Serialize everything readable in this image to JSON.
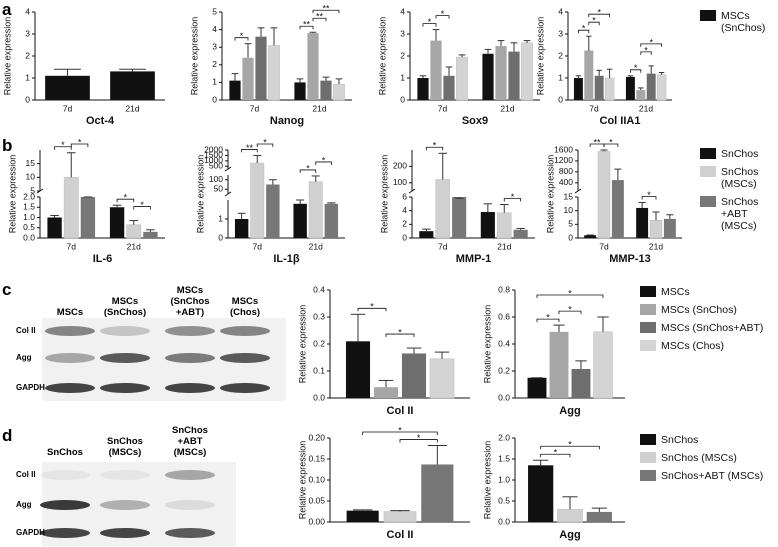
{
  "panels": [
    {
      "label": "a"
    },
    {
      "label": "b"
    },
    {
      "label": "c"
    },
    {
      "label": "d"
    }
  ],
  "blots": [
    {
      "columns": [
        "MSCs",
        "MSCs (SnChos)",
        "MSCs (SnChos +ABT)",
        "MSCs (Chos)"
      ],
      "rows": [
        "Col II",
        "Agg",
        "GAPDH"
      ]
    },
    {
      "columns": [
        "SnChos",
        "SnChos (MSCs)",
        "SnChos +ABT (MSCs)"
      ],
      "rows": [
        "Col II",
        "Agg",
        "GAPDH"
      ]
    }
  ],
  "chart_data": [
    {
      "type": "bar",
      "ylabel": "Relative expression",
      "xlabel": "Oct-4",
      "categories": [
        "7d",
        "21d"
      ],
      "ylim": [
        0,
        4
      ],
      "yticks": [
        0,
        1,
        2,
        3,
        4
      ],
      "series": [
        {
          "name": "MSCs (SnChos)",
          "color": "#111111",
          "values": [
            1.1,
            1.3
          ],
          "errors": [
            0.3,
            0.1
          ]
        }
      ],
      "significance": []
    },
    {
      "type": "bar",
      "ylabel": "Relative expression",
      "xlabel": "Nanog",
      "categories": [
        "7d",
        "21d"
      ],
      "ylim": [
        0,
        5
      ],
      "yticks": [
        0,
        1,
        2,
        3,
        4,
        5
      ],
      "series": [
        {
          "color": "#111111",
          "values": [
            1.1,
            1.0
          ],
          "errors": [
            0.4,
            0.2
          ]
        },
        {
          "color": "#a6a6a6",
          "values": [
            2.4,
            3.8
          ],
          "errors": [
            0.8,
            0.05
          ]
        },
        {
          "color": "#6e6e6e",
          "values": [
            3.6,
            1.1
          ],
          "errors": [
            0.5,
            0.2
          ]
        },
        {
          "color": "#d4d4d4",
          "values": [
            3.1,
            0.9
          ],
          "errors": [
            1.0,
            0.3
          ]
        }
      ],
      "significance": [
        {
          "text": "*",
          "category": 0,
          "bars": [
            0,
            1
          ]
        },
        {
          "text": "**",
          "category": 1,
          "bars": [
            0,
            1
          ]
        },
        {
          "text": "**",
          "category": 1,
          "bars": [
            1,
            2
          ]
        },
        {
          "text": "**",
          "category": 1,
          "bars": [
            1,
            3
          ]
        }
      ]
    },
    {
      "type": "bar",
      "ylabel": "Relative expression",
      "xlabel": "Sox9",
      "categories": [
        "7d",
        "21d"
      ],
      "ylim": [
        0,
        4
      ],
      "yticks": [
        0,
        1,
        2,
        3,
        4
      ],
      "series": [
        {
          "color": "#111111",
          "values": [
            1.0,
            2.1
          ],
          "errors": [
            0.1,
            0.2
          ]
        },
        {
          "color": "#a6a6a6",
          "values": [
            2.7,
            2.45
          ],
          "errors": [
            0.5,
            0.25
          ]
        },
        {
          "color": "#6e6e6e",
          "values": [
            1.1,
            2.2
          ],
          "errors": [
            0.4,
            0.4
          ]
        },
        {
          "color": "#d4d4d4",
          "values": [
            1.95,
            2.6
          ],
          "errors": [
            0.1,
            0.1
          ]
        }
      ],
      "significance": [
        {
          "text": "*",
          "category": 0,
          "bars": [
            0,
            1
          ]
        },
        {
          "text": "*",
          "category": 0,
          "bars": [
            1,
            2
          ]
        }
      ]
    },
    {
      "type": "bar",
      "ylabel": "Relative expression",
      "xlabel": "Col IIA1",
      "categories": [
        "7d",
        "21d"
      ],
      "ylim": [
        0,
        4
      ],
      "yticks": [
        0,
        1,
        2,
        3,
        4
      ],
      "series": [
        {
          "color": "#111111",
          "values": [
            1.0,
            1.05
          ],
          "errors": [
            0.1,
            0.05
          ]
        },
        {
          "color": "#a6a6a6",
          "values": [
            2.25,
            0.45
          ],
          "errors": [
            0.65,
            0.1
          ]
        },
        {
          "color": "#6e6e6e",
          "values": [
            1.1,
            1.2
          ],
          "errors": [
            0.25,
            0.35
          ]
        },
        {
          "color": "#d4d4d4",
          "values": [
            1.0,
            1.15
          ],
          "errors": [
            0.4,
            0.1
          ]
        }
      ],
      "significance": [
        {
          "text": "*",
          "category": 0,
          "bars": [
            0,
            1
          ]
        },
        {
          "text": "*",
          "category": 0,
          "bars": [
            1,
            2
          ]
        },
        {
          "text": "*",
          "category": 0,
          "bars": [
            1,
            3
          ]
        },
        {
          "text": "*",
          "category": 1,
          "bars": [
            0,
            1
          ]
        },
        {
          "text": "*",
          "category": 1,
          "bars": [
            1,
            2
          ]
        },
        {
          "text": "*",
          "category": 1,
          "bars": [
            1,
            3
          ]
        }
      ]
    },
    {
      "type": "bar",
      "ylabel": "Relative expression",
      "xlabel": "IL-6",
      "categories": [
        "7d",
        "21d"
      ],
      "segments": [
        {
          "ylim": [
            0,
            2
          ],
          "yticks": [
            {
              "value": 0,
              "label": "0.0"
            },
            0.5,
            {
              "value": 1,
              "label": "1.0"
            },
            1.5,
            {
              "value": 2,
              "label": "2.0"
            }
          ]
        },
        {
          "ylim": [
            5,
            20
          ],
          "yticks": [
            5,
            10,
            15
          ]
        }
      ],
      "series": [
        {
          "name": "SnChos",
          "color": "#111111",
          "values": [
            1.0,
            1.5
          ],
          "errors": [
            0.1,
            0.1
          ]
        },
        {
          "name": "SnChos (MSCs)",
          "color": "#d0d0d0",
          "values": [
            10,
            0.65
          ],
          "errors": [
            9,
            0.2
          ]
        },
        {
          "name": "SnChos +ABT (MSCs)",
          "color": "#777777",
          "values": [
            2.0,
            0.3
          ],
          "errors": [
            0,
            0.1
          ]
        }
      ],
      "significance": [
        {
          "text": "*",
          "category": 0,
          "bars": [
            0,
            1
          ]
        },
        {
          "text": "*",
          "category": 0,
          "bars": [
            1,
            2
          ]
        },
        {
          "text": "*",
          "category": 1,
          "bars": [
            0,
            1
          ]
        },
        {
          "text": "*",
          "category": 1,
          "bars": [
            1,
            2
          ]
        }
      ]
    },
    {
      "type": "bar",
      "ylabel": "Relative expression",
      "xlabel": "IL-1β",
      "categories": [
        "7d",
        "21d"
      ],
      "segments": [
        {
          "ylim": [
            0,
            2
          ],
          "yticks": [
            0,
            1
          ]
        },
        {
          "ylim": [
            25,
            125
          ],
          "yticks": [
            50,
            100
          ]
        },
        {
          "ylim": [
            250,
            2000
          ],
          "yticks": [
            500,
            1000,
            1500,
            2000
          ]
        }
      ],
      "series": [
        {
          "color": "#111111",
          "values": [
            1.0,
            1.8
          ],
          "errors": [
            0.3,
            0.2
          ]
        },
        {
          "color": "#d0d0d0",
          "values": [
            800,
            90
          ],
          "errors": [
            700,
            30
          ]
        },
        {
          "color": "#777777",
          "values": [
            75,
            1.8
          ],
          "errors": [
            25,
            0.05
          ]
        }
      ],
      "significance": [
        {
          "text": "**",
          "category": 0,
          "bars": [
            0,
            1
          ]
        },
        {
          "text": "*",
          "category": 0,
          "bars": [
            1,
            2
          ]
        },
        {
          "text": "*",
          "category": 1,
          "bars": [
            0,
            1
          ]
        },
        {
          "text": "*",
          "category": 1,
          "bars": [
            1,
            2
          ]
        }
      ]
    },
    {
      "type": "bar",
      "ylabel": "Relative expression",
      "xlabel": "MMP-1",
      "categories": [
        "7d",
        "21d"
      ],
      "segments": [
        {
          "ylim": [
            0,
            6
          ],
          "yticks": [
            0,
            2,
            4,
            6
          ]
        },
        {
          "ylim": [
            50,
            300
          ],
          "yticks": [
            100,
            200
          ]
        }
      ],
      "series": [
        {
          "color": "#111111",
          "values": [
            1.0,
            3.8
          ],
          "errors": [
            0.3,
            1.2
          ]
        },
        {
          "color": "#d0d0d0",
          "values": [
            120,
            3.7
          ],
          "errors": [
            160,
            1.2
          ]
        },
        {
          "color": "#777777",
          "values": [
            6.0,
            1.2
          ],
          "errors": [
            0.1,
            0.2
          ]
        }
      ],
      "significance": [
        {
          "text": "*",
          "category": 0,
          "bars": [
            0,
            1
          ]
        },
        {
          "text": "*",
          "category": 1,
          "bars": [
            1,
            2
          ]
        }
      ]
    },
    {
      "type": "bar",
      "ylabel": "Relative expression",
      "xlabel": "MMP-13",
      "categories": [
        "7d",
        "21d"
      ],
      "segments": [
        {
          "ylim": [
            0,
            15
          ],
          "yticks": [
            0,
            5,
            10,
            15
          ]
        },
        {
          "ylim": [
            100,
            1600
          ],
          "yticks": [
            400,
            800,
            1200,
            1600
          ]
        }
      ],
      "series": [
        {
          "color": "#111111",
          "values": [
            1.0,
            11
          ],
          "errors": [
            0.1,
            2
          ]
        },
        {
          "color": "#d0d0d0",
          "values": [
            1550,
            6.5
          ],
          "errors": [
            50,
            3
          ]
        },
        {
          "color": "#777777",
          "values": [
            500,
            7
          ],
          "errors": [
            400,
            1.5
          ]
        }
      ],
      "significance": [
        {
          "text": "**",
          "category": 0,
          "bars": [
            0,
            1
          ]
        },
        {
          "text": "*",
          "category": 0,
          "bars": [
            1,
            2
          ]
        },
        {
          "text": "*",
          "category": 1,
          "bars": [
            0,
            1
          ]
        }
      ]
    },
    {
      "type": "bar",
      "ylabel": "Relative expression",
      "categories": [
        "Col II"
      ],
      "ylim": [
        0,
        0.4
      ],
      "yticks": [
        {
          "value": 0,
          "label": "0.0"
        },
        0.1,
        0.2,
        0.3,
        0.4
      ],
      "series": [
        {
          "name": "MSCs",
          "color": "#111111",
          "values": [
            0.21
          ],
          "errors": [
            0.1
          ]
        },
        {
          "name": "MSCs (SnChos)",
          "color": "#a6a6a6",
          "values": [
            0.04
          ],
          "errors": [
            0.025
          ]
        },
        {
          "name": "MSCs (SnChos+ABT)",
          "color": "#6e6e6e",
          "values": [
            0.165
          ],
          "errors": [
            0.02
          ]
        },
        {
          "name": "MSCs (Chos)",
          "color": "#d4d4d4",
          "values": [
            0.145
          ],
          "errors": [
            0.025
          ]
        }
      ],
      "significance": [
        {
          "text": "*",
          "category": 0,
          "bars": [
            0,
            1
          ]
        },
        {
          "text": "*",
          "category": 0,
          "bars": [
            1,
            2
          ]
        }
      ]
    },
    {
      "type": "bar",
      "ylabel": "Relative expression",
      "categories": [
        "Agg"
      ],
      "ylim": [
        0,
        0.8
      ],
      "yticks": [
        {
          "value": 0,
          "label": "0.0"
        },
        0.2,
        0.4,
        0.6,
        0.8
      ],
      "series": [
        {
          "color": "#111111",
          "values": [
            0.15
          ],
          "errors": [
            0
          ]
        },
        {
          "color": "#a6a6a6",
          "values": [
            0.49
          ],
          "errors": [
            0.05
          ]
        },
        {
          "color": "#6e6e6e",
          "values": [
            0.215
          ],
          "errors": [
            0.06
          ]
        },
        {
          "color": "#d4d4d4",
          "values": [
            0.49
          ],
          "errors": [
            0.11
          ]
        }
      ],
      "significance": [
        {
          "text": "*",
          "category": 0,
          "bars": [
            0,
            1
          ]
        },
        {
          "text": "*",
          "category": 0,
          "bars": [
            1,
            2
          ]
        },
        {
          "text": "*",
          "category": 0,
          "bars": [
            0,
            3
          ]
        }
      ]
    },
    {
      "type": "bar",
      "ylabel": "Relative expression",
      "categories": [
        "Col II"
      ],
      "ylim": [
        0,
        0.2
      ],
      "yticks": [
        {
          "value": 0,
          "label": "0.00"
        },
        0.05,
        {
          "value": 0.1,
          "label": "0.10"
        },
        0.15,
        {
          "value": 0.2,
          "label": "0.20"
        }
      ],
      "series": [
        {
          "name": "SnChos",
          "color": "#111111",
          "values": [
            0.027
          ],
          "errors": [
            0.002
          ]
        },
        {
          "name": "SnChos (MSCs)",
          "color": "#d0d0d0",
          "values": [
            0.025
          ],
          "errors": [
            0.002
          ]
        },
        {
          "name": "SnChos+ABT (MSCs)",
          "color": "#777777",
          "values": [
            0.137
          ],
          "errors": [
            0.045
          ]
        }
      ],
      "significance": [
        {
          "text": "*",
          "category": 0,
          "bars": [
            1,
            2
          ]
        },
        {
          "text": "*",
          "category": 0,
          "bars": [
            0,
            2
          ]
        }
      ]
    },
    {
      "type": "bar",
      "ylabel": "Relative expression",
      "categories": [
        "Agg"
      ],
      "ylim": [
        0,
        2
      ],
      "yticks": [
        {
          "value": 0,
          "label": "0.0"
        },
        0.5,
        {
          "value": 1,
          "label": "1.0"
        },
        1.5,
        {
          "value": 2,
          "label": "2.0"
        }
      ],
      "series": [
        {
          "color": "#111111",
          "values": [
            1.35
          ],
          "errors": [
            0.12
          ]
        },
        {
          "color": "#d0d0d0",
          "values": [
            0.3
          ],
          "errors": [
            0.3
          ]
        },
        {
          "color": "#777777",
          "values": [
            0.24
          ],
          "errors": [
            0.09
          ]
        }
      ],
      "significance": [
        {
          "text": "*",
          "category": 0,
          "bars": [
            0,
            1
          ]
        },
        {
          "text": "*",
          "category": 0,
          "bars": [
            0,
            2
          ]
        }
      ]
    }
  ]
}
